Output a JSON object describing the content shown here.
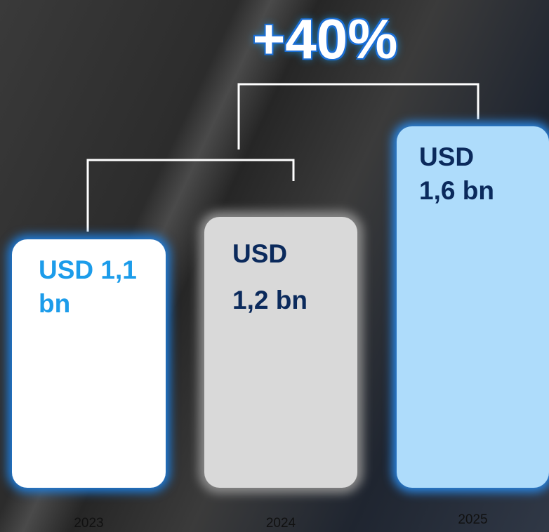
{
  "chart_data": {
    "type": "bar",
    "annotation": "+40%",
    "categories": [
      "2023",
      "2024",
      "2025"
    ],
    "values": [
      1.1,
      1.2,
      1.6
    ],
    "value_labels": [
      "USD 1,1 bn",
      "USD 1,2 bn",
      "USD 1,6 bn"
    ],
    "colors": [
      "#ffffff",
      "#d9d9d9",
      "#aedcfb"
    ],
    "label_colors": [
      "#1c9cea",
      "#0b2a5c",
      "#0b2a5c"
    ]
  }
}
